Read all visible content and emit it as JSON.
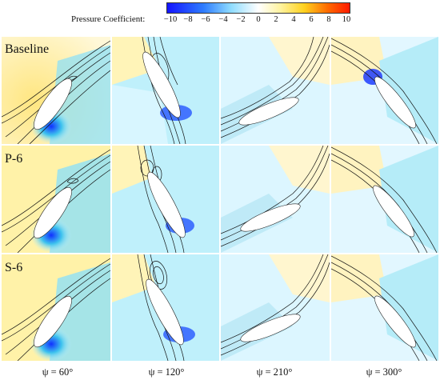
{
  "colorbar": {
    "title": "Pressure Coefficient:",
    "ticks": [
      "−10",
      "−8",
      "−6",
      "−4",
      "−2",
      "0",
      "2",
      "4",
      "6",
      "8",
      "10"
    ],
    "colors": [
      "#1a1aff",
      "#3aa0ff",
      "#bfefff",
      "#ffffff",
      "#fff6b0",
      "#ffd23a",
      "#ff2a00"
    ]
  },
  "rows": [
    {
      "label": "Baseline"
    },
    {
      "label": "P-6"
    },
    {
      "label": "S-6"
    }
  ],
  "columns": [
    {
      "label": "ψ = 60°"
    },
    {
      "label": "ψ = 120°"
    },
    {
      "label": "ψ = 210°"
    },
    {
      "label": "ψ = 300°"
    }
  ]
}
